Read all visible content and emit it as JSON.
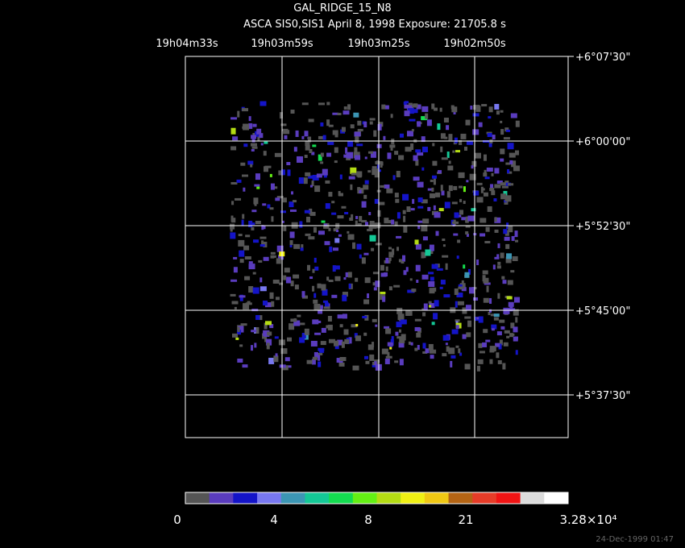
{
  "title": "GAL_RIDGE_15_N8",
  "subtitle": "ASCA SIS0,SIS1 April 8, 1998 Exposure: 21705.8 s",
  "ra_labels": [
    "19h04m33s",
    "19h03m59s",
    "19h03m25s",
    "19h02m50s"
  ],
  "dec_labels": [
    "+6°07'30\"",
    "+6°00'00\"",
    "+5°52'30\"",
    "+5°45'00\"",
    "+5°37'30\""
  ],
  "colorbar": {
    "colors": [
      "#555555",
      "#5a3cbe",
      "#1414c8",
      "#7878f0",
      "#3c96b4",
      "#14c896",
      "#14dc50",
      "#64f014",
      "#b4dc14",
      "#f0f014",
      "#f0c814",
      "#b46414",
      "#e63c28",
      "#f01414",
      "#dcdcdc",
      "#ffffff"
    ],
    "labels": [
      "0",
      "4",
      "8",
      "21",
      "3.28×10⁴"
    ]
  },
  "timestamp": "24-Dec-1999 01:47"
}
